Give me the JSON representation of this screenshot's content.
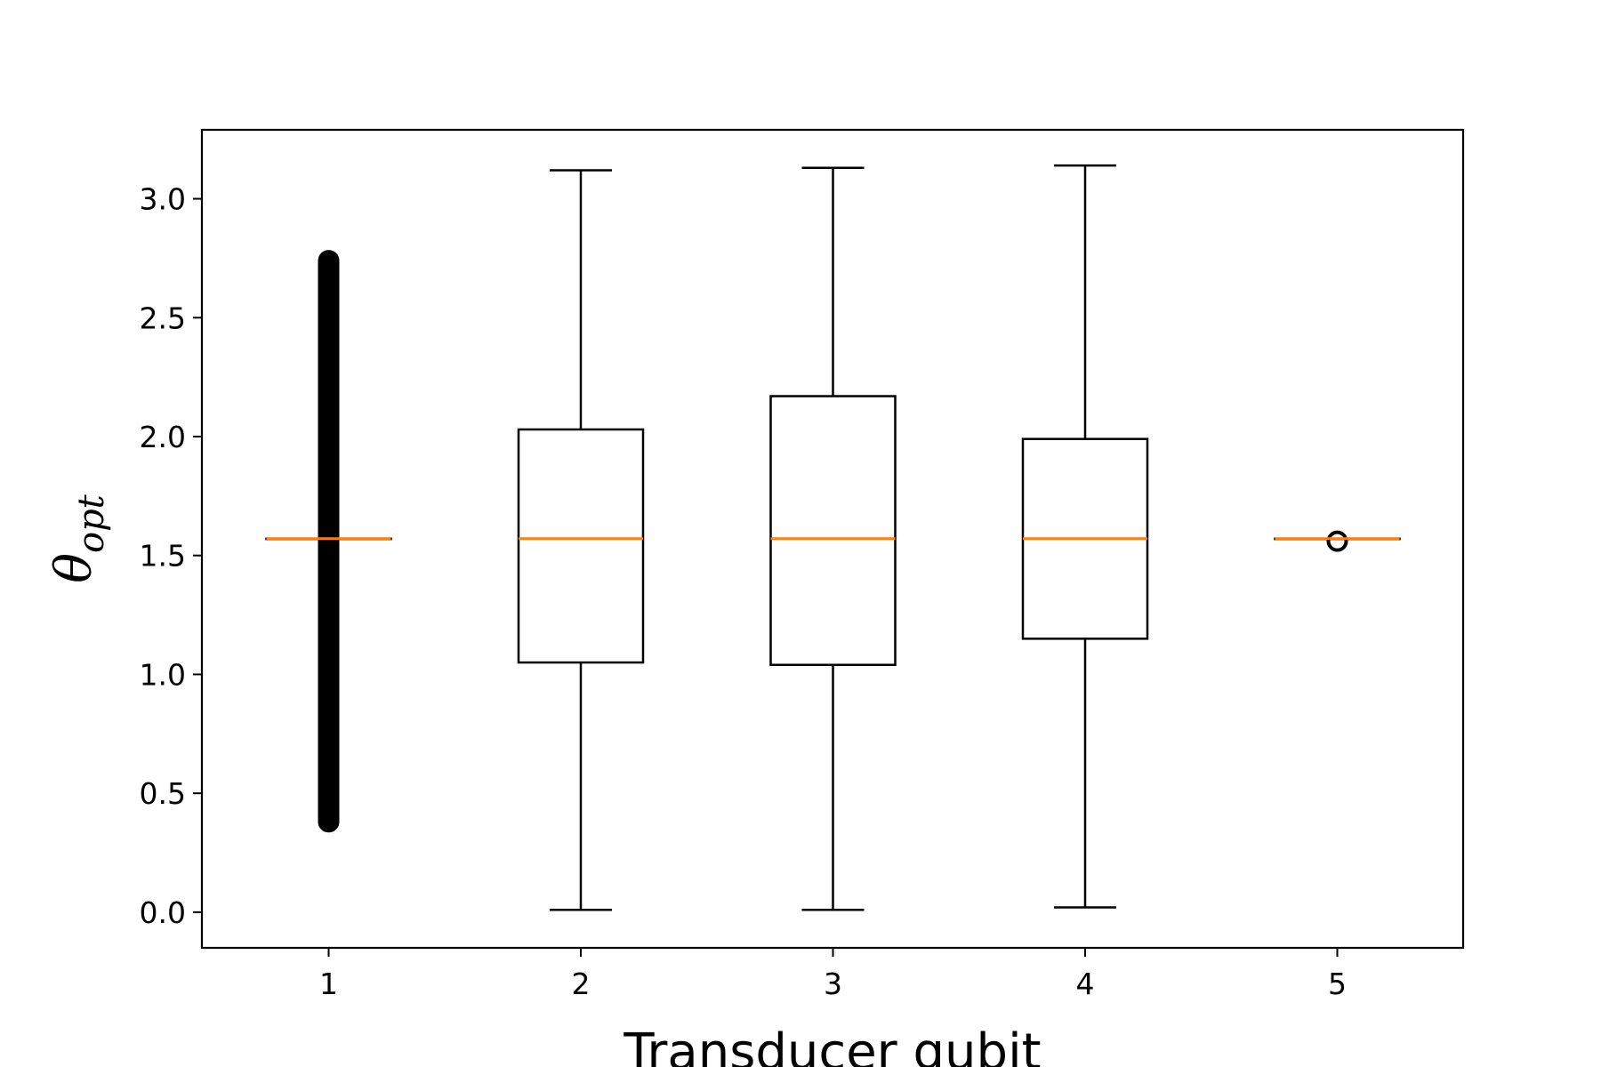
{
  "chart_data": {
    "type": "box",
    "xlabel": "Transducer qubit",
    "ylabel": {
      "symbol": "θ",
      "subscript": "opt"
    },
    "categories": [
      "1",
      "2",
      "3",
      "4",
      "5"
    ],
    "ylim": [
      -0.15,
      3.29
    ],
    "yticks": [
      0.0,
      0.5,
      1.0,
      1.5,
      2.0,
      2.5,
      3.0
    ],
    "ytick_labels": [
      "0.0",
      "0.5",
      "1.0",
      "1.5",
      "2.0",
      "2.5",
      "3.0"
    ],
    "grid": false,
    "colors": {
      "box": "#000000",
      "median": "#ff7f0e",
      "flier": "#000000"
    },
    "boxes": [
      {
        "label": "1",
        "q1": 1.571,
        "median": 1.571,
        "q3": 1.571,
        "whisker_low": 1.571,
        "whisker_high": 1.571,
        "fliers_range": [
          0.38,
          2.74
        ]
      },
      {
        "label": "2",
        "q1": 1.05,
        "median": 1.571,
        "q3": 2.03,
        "whisker_low": 0.01,
        "whisker_high": 3.12
      },
      {
        "label": "3",
        "q1": 1.04,
        "median": 1.571,
        "q3": 2.17,
        "whisker_low": 0.01,
        "whisker_high": 3.13
      },
      {
        "label": "4",
        "q1": 1.15,
        "median": 1.571,
        "q3": 1.99,
        "whisker_low": 0.02,
        "whisker_high": 3.14
      },
      {
        "label": "5",
        "q1": 1.571,
        "median": 1.571,
        "q3": 1.571,
        "whisker_low": 1.571,
        "whisker_high": 1.571,
        "fliers": [
          1.56
        ]
      }
    ]
  }
}
